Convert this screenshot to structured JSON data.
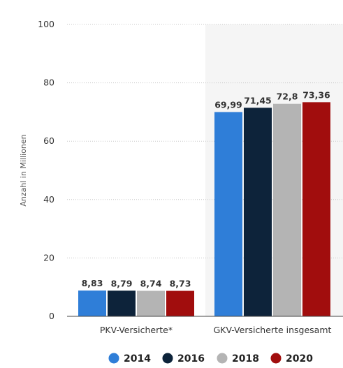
{
  "chart_data": {
    "type": "bar",
    "categories": [
      "PKV-Versicherte*",
      "GKV-Versicherte insgesamt"
    ],
    "series": [
      {
        "name": "2014",
        "values": [
          8.83,
          69.99
        ],
        "labels": [
          "8,83",
          "69,99"
        ],
        "color": "#2f7ed8"
      },
      {
        "name": "2016",
        "values": [
          8.79,
          71.45
        ],
        "labels": [
          "8,79",
          "71,45"
        ],
        "color": "#0d233a"
      },
      {
        "name": "2018",
        "values": [
          8.74,
          72.8
        ],
        "labels": [
          "8,74",
          "72,8"
        ],
        "color": "#b4b4b4"
      },
      {
        "name": "2020",
        "values": [
          8.73,
          73.36
        ],
        "labels": [
          "8,73",
          "73,36"
        ],
        "color": "#a10d0d"
      }
    ],
    "ylabel": "Anzahl in Millionen",
    "ylim": [
      0,
      100
    ],
    "yticks": [
      "0",
      "20",
      "40",
      "60",
      "80",
      "100"
    ],
    "grid": true,
    "legend_position": "bottom-center"
  }
}
